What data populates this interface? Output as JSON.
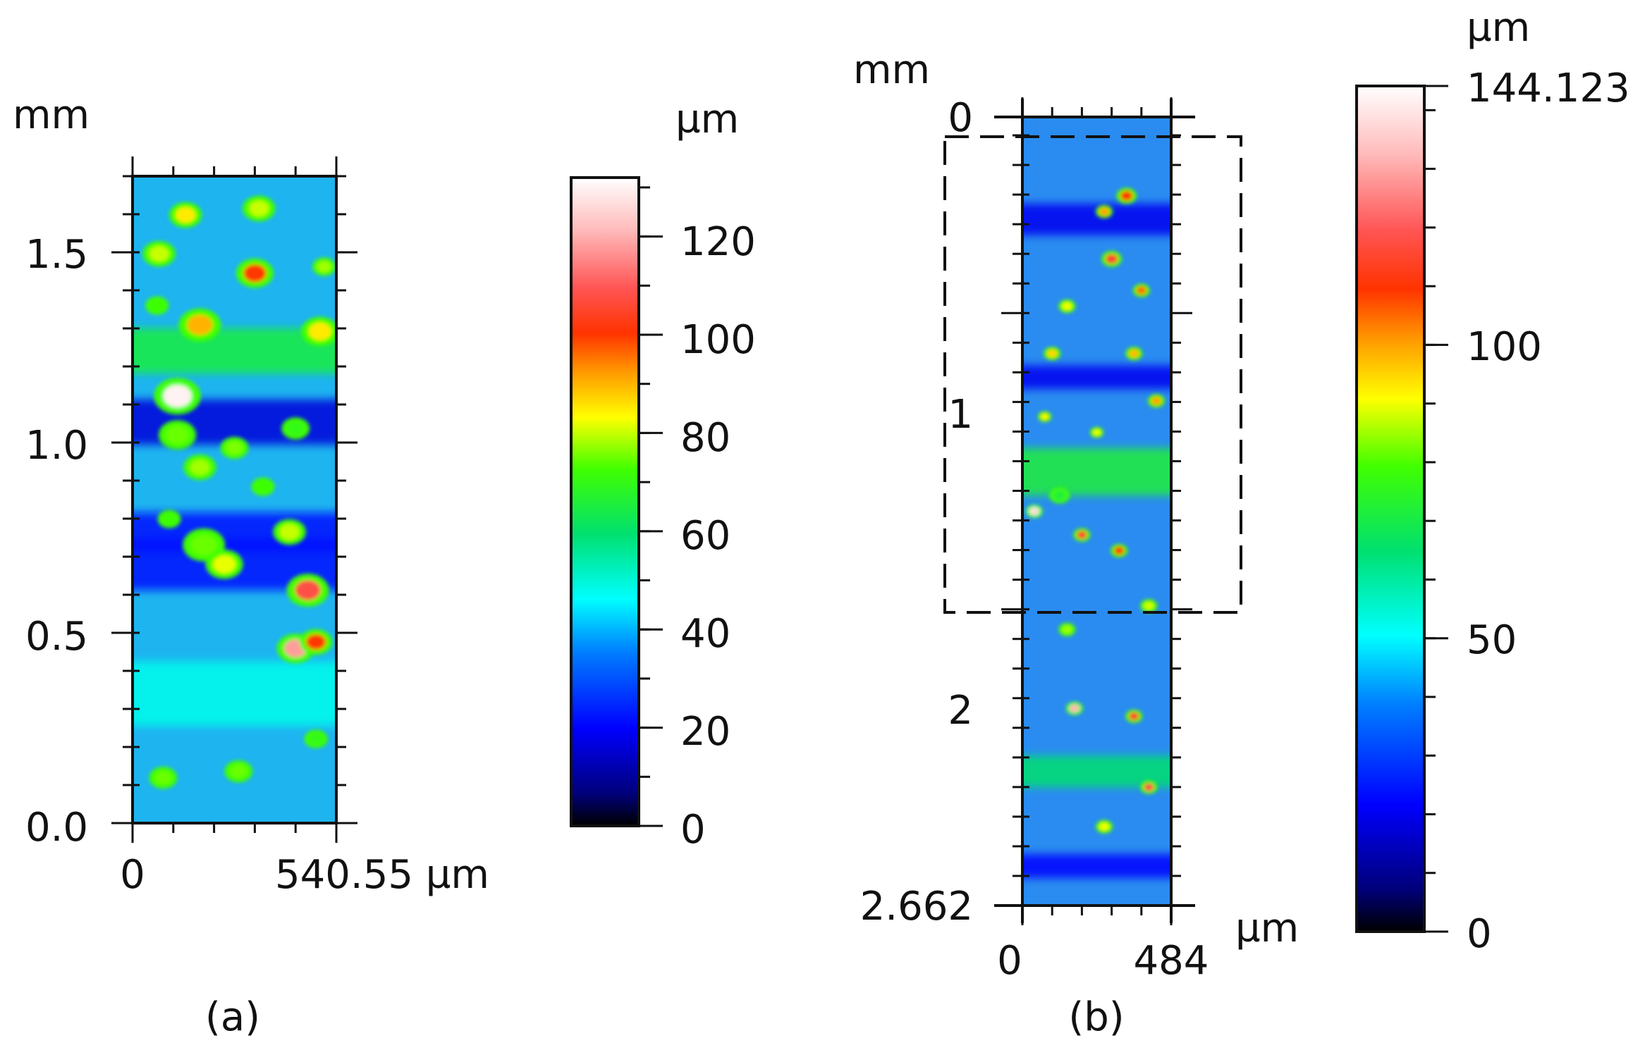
{
  "chart_data": [
    {
      "type": "heatmap",
      "panel_label": "(a)",
      "y_unit": "mm",
      "ylim": [
        0,
        1.7
      ],
      "y_ticks": [
        0,
        0.5,
        1.0,
        1.5
      ],
      "y_tick_labels": [
        "0.0",
        "0.5",
        "1.0",
        "1.5"
      ],
      "x_tick_labels": [
        "0",
        "540.55 µm"
      ],
      "xlim": [
        0,
        540.55
      ],
      "colorbar": {
        "unit": "µm",
        "range": [
          0,
          132
        ],
        "ticks": [
          0,
          20,
          40,
          60,
          80,
          100,
          120
        ],
        "tick_labels": [
          "0",
          "20",
          "40",
          "60",
          "80",
          "100",
          "120"
        ]
      },
      "features": [
        {
          "x": 0.22,
          "y": 0.34,
          "r": 0.1,
          "v": 130
        },
        {
          "x": 0.33,
          "y": 0.23,
          "r": 0.09,
          "v": 90
        },
        {
          "x": 0.6,
          "y": 0.15,
          "r": 0.08,
          "v": 100
        },
        {
          "x": 0.26,
          "y": 0.06,
          "r": 0.07,
          "v": 85
        },
        {
          "x": 0.62,
          "y": 0.05,
          "r": 0.07,
          "v": 80
        },
        {
          "x": 0.13,
          "y": 0.12,
          "r": 0.07,
          "v": 80
        },
        {
          "x": 0.22,
          "y": 0.4,
          "r": 0.08,
          "v": 75
        },
        {
          "x": 0.92,
          "y": 0.24,
          "r": 0.08,
          "v": 85
        },
        {
          "x": 0.8,
          "y": 0.73,
          "r": 0.08,
          "v": 118
        },
        {
          "x": 0.9,
          "y": 0.72,
          "r": 0.07,
          "v": 100
        },
        {
          "x": 0.86,
          "y": 0.64,
          "r": 0.09,
          "v": 108
        },
        {
          "x": 0.77,
          "y": 0.55,
          "r": 0.07,
          "v": 80
        },
        {
          "x": 0.45,
          "y": 0.6,
          "r": 0.08,
          "v": 82
        },
        {
          "x": 0.35,
          "y": 0.57,
          "r": 0.09,
          "v": 75
        },
        {
          "x": 0.33,
          "y": 0.45,
          "r": 0.07,
          "v": 78
        },
        {
          "x": 0.5,
          "y": 0.42,
          "r": 0.06,
          "v": 76
        },
        {
          "x": 0.8,
          "y": 0.39,
          "r": 0.06,
          "v": 70
        },
        {
          "x": 0.52,
          "y": 0.92,
          "r": 0.06,
          "v": 75
        },
        {
          "x": 0.15,
          "y": 0.93,
          "r": 0.06,
          "v": 75
        },
        {
          "x": 0.9,
          "y": 0.87,
          "r": 0.05,
          "v": 70
        },
        {
          "x": 0.12,
          "y": 0.2,
          "r": 0.05,
          "v": 72
        },
        {
          "x": 0.94,
          "y": 0.14,
          "r": 0.05,
          "v": 78
        },
        {
          "x": 0.64,
          "y": 0.48,
          "r": 0.05,
          "v": 72
        },
        {
          "x": 0.18,
          "y": 0.53,
          "r": 0.05,
          "v": 72
        }
      ],
      "bands": [
        {
          "y": 0.8,
          "w": 0.1,
          "v": 48
        },
        {
          "y": 0.6,
          "w": 0.08,
          "v": 22
        },
        {
          "y": 0.38,
          "w": 0.07,
          "v": 16
        },
        {
          "y": 0.27,
          "w": 0.07,
          "v": 65
        },
        {
          "y": 0.55,
          "w": 0.06,
          "v": 22
        }
      ]
    },
    {
      "type": "heatmap",
      "panel_label": "(b)",
      "y_unit": "mm",
      "ylim": [
        0,
        2.662
      ],
      "y_ticks": [
        0,
        1,
        2,
        2.662
      ],
      "y_tick_labels": [
        "0",
        "1",
        "2",
        "2.662"
      ],
      "x_tick_labels": [
        "0",
        "484"
      ],
      "x_unit": "µm",
      "xlim": [
        0,
        484
      ],
      "colorbar": {
        "unit": "µm",
        "range": [
          0,
          144.123
        ],
        "ticks": [
          0,
          50,
          100,
          144.123
        ],
        "tick_labels": [
          "0",
          "50",
          "100",
          "144.123"
        ]
      },
      "region_of_interest": {
        "y_from_mm": 0.07,
        "y_to_mm": 1.67
      },
      "features": [
        {
          "x": 0.7,
          "y": 0.1,
          "r": 0.06,
          "v": 110
        },
        {
          "x": 0.55,
          "y": 0.12,
          "r": 0.05,
          "v": 100
        },
        {
          "x": 0.6,
          "y": 0.18,
          "r": 0.06,
          "v": 115
        },
        {
          "x": 0.8,
          "y": 0.22,
          "r": 0.05,
          "v": 105
        },
        {
          "x": 0.3,
          "y": 0.24,
          "r": 0.05,
          "v": 90
        },
        {
          "x": 0.2,
          "y": 0.3,
          "r": 0.05,
          "v": 95
        },
        {
          "x": 0.9,
          "y": 0.36,
          "r": 0.05,
          "v": 100
        },
        {
          "x": 0.25,
          "y": 0.48,
          "r": 0.06,
          "v": 72
        },
        {
          "x": 0.08,
          "y": 0.5,
          "r": 0.05,
          "v": 138
        },
        {
          "x": 0.4,
          "y": 0.53,
          "r": 0.05,
          "v": 115
        },
        {
          "x": 0.65,
          "y": 0.55,
          "r": 0.05,
          "v": 110
        },
        {
          "x": 0.75,
          "y": 0.3,
          "r": 0.05,
          "v": 98
        },
        {
          "x": 0.85,
          "y": 0.62,
          "r": 0.05,
          "v": 88
        },
        {
          "x": 0.3,
          "y": 0.65,
          "r": 0.05,
          "v": 85
        },
        {
          "x": 0.35,
          "y": 0.75,
          "r": 0.05,
          "v": 132
        },
        {
          "x": 0.75,
          "y": 0.76,
          "r": 0.05,
          "v": 115
        },
        {
          "x": 0.85,
          "y": 0.85,
          "r": 0.05,
          "v": 118
        },
        {
          "x": 0.55,
          "y": 0.9,
          "r": 0.05,
          "v": 90
        },
        {
          "x": 0.15,
          "y": 0.38,
          "r": 0.04,
          "v": 92
        },
        {
          "x": 0.5,
          "y": 0.4,
          "r": 0.04,
          "v": 90
        }
      ],
      "bands": [
        {
          "y": 0.45,
          "w": 0.06,
          "v": 72
        },
        {
          "y": 0.13,
          "w": 0.04,
          "v": 20
        },
        {
          "y": 0.33,
          "w": 0.03,
          "v": 20
        },
        {
          "y": 0.95,
          "w": 0.03,
          "v": 22
        },
        {
          "y": 0.83,
          "w": 0.04,
          "v": 65
        }
      ]
    }
  ]
}
